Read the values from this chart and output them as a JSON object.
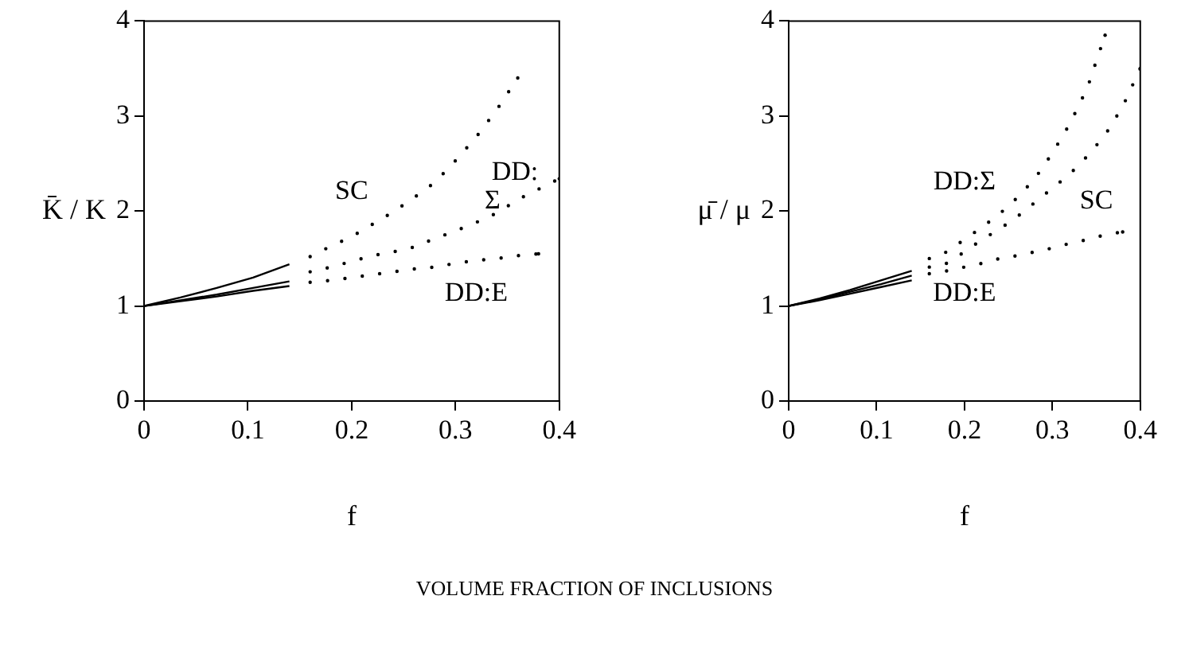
{
  "chart_data": [
    {
      "type": "line",
      "ylabel": "K̄ / K",
      "xlabel": "f",
      "xlim": [
        0,
        0.4
      ],
      "ylim": [
        0,
        4
      ],
      "xticks": [
        0,
        0.1,
        0.2,
        0.3,
        0.4
      ],
      "yticks": [
        0,
        1,
        2,
        3,
        4
      ],
      "grid": false,
      "legend": false,
      "marker": "none",
      "series": [
        {
          "color": "#000000",
          "line_style": "solid",
          "x": [
            0,
            0.035,
            0.07,
            0.105,
            0.14
          ],
          "values": [
            1,
            1.09,
            1.19,
            1.3,
            1.44
          ]
        },
        {
          "color": "#000000",
          "line_style": "solid",
          "x": [
            0,
            0.035,
            0.07,
            0.105,
            0.14
          ],
          "values": [
            1,
            1.06,
            1.12,
            1.19,
            1.26
          ]
        },
        {
          "color": "#000000",
          "line_style": "solid",
          "x": [
            0,
            0.035,
            0.07,
            0.105,
            0.14
          ],
          "values": [
            1,
            1.05,
            1.1,
            1.16,
            1.21
          ]
        },
        {
          "name": "SC",
          "color": "#000000",
          "line_style": "dotted",
          "x": [
            0.16,
            0.18,
            0.2,
            0.22,
            0.24,
            0.26,
            0.28,
            0.3,
            0.32,
            0.34,
            0.36
          ],
          "values": [
            1.52,
            1.63,
            1.73,
            1.86,
            1.99,
            2.14,
            2.3,
            2.53,
            2.78,
            3.07,
            3.4
          ]
        },
        {
          "name": "DD:Σ",
          "color": "#000000",
          "line_style": "dotted",
          "x": [
            0.16,
            0.18,
            0.2,
            0.22,
            0.24,
            0.26,
            0.28,
            0.3,
            0.32,
            0.34,
            0.36,
            0.38,
            0.4
          ],
          "values": [
            1.36,
            1.41,
            1.47,
            1.53,
            1.57,
            1.62,
            1.71,
            1.79,
            1.88,
            1.98,
            2.12,
            2.23,
            2.34
          ]
        },
        {
          "name": "DD:E",
          "color": "#000000",
          "line_style": "dotted",
          "x": [
            0.16,
            0.18,
            0.2,
            0.22,
            0.24,
            0.26,
            0.28,
            0.3,
            0.32,
            0.34,
            0.36,
            0.38
          ],
          "values": [
            1.25,
            1.27,
            1.3,
            1.33,
            1.36,
            1.39,
            1.41,
            1.45,
            1.48,
            1.5,
            1.53,
            1.55
          ]
        }
      ],
      "annotations": [
        "VOLUME FRACTION OF INCLUSIONS"
      ]
    },
    {
      "type": "line",
      "ylabel": "μ̄ / μ",
      "xlabel": "f",
      "xlim": [
        0,
        0.4
      ],
      "ylim": [
        0,
        4
      ],
      "xticks": [
        0,
        0.1,
        0.2,
        0.3,
        0.4
      ],
      "yticks": [
        0,
        1,
        2,
        3,
        4
      ],
      "grid": false,
      "legend": false,
      "marker": "none",
      "series": [
        {
          "color": "#000000",
          "line_style": "solid",
          "x": [
            0,
            0.035,
            0.07,
            0.105,
            0.14
          ],
          "values": [
            1,
            1.08,
            1.17,
            1.27,
            1.37
          ]
        },
        {
          "color": "#000000",
          "line_style": "solid",
          "x": [
            0,
            0.035,
            0.07,
            0.105,
            0.14
          ],
          "values": [
            1,
            1.07,
            1.15,
            1.23,
            1.32
          ]
        },
        {
          "color": "#000000",
          "line_style": "solid",
          "x": [
            0,
            0.035,
            0.07,
            0.105,
            0.14
          ],
          "values": [
            1,
            1.06,
            1.13,
            1.2,
            1.27
          ]
        },
        {
          "name": "DD:Σ",
          "color": "#000000",
          "line_style": "dotted",
          "x": [
            0.16,
            0.18,
            0.2,
            0.22,
            0.24,
            0.26,
            0.28,
            0.3,
            0.32,
            0.34,
            0.35,
            0.36
          ],
          "values": [
            1.5,
            1.57,
            1.7,
            1.83,
            1.97,
            2.14,
            2.34,
            2.61,
            2.92,
            3.3,
            3.58,
            3.85
          ]
        },
        {
          "name": "SC",
          "color": "#000000",
          "line_style": "dotted",
          "x": [
            0.16,
            0.18,
            0.2,
            0.22,
            0.24,
            0.26,
            0.28,
            0.3,
            0.32,
            0.34,
            0.36,
            0.38,
            0.4
          ],
          "values": [
            1.41,
            1.45,
            1.57,
            1.7,
            1.81,
            1.94,
            2.09,
            2.24,
            2.39,
            2.58,
            2.8,
            3.1,
            3.5
          ]
        },
        {
          "name": "DD:E",
          "color": "#000000",
          "line_style": "dotted",
          "x": [
            0.16,
            0.18,
            0.2,
            0.22,
            0.24,
            0.26,
            0.28,
            0.3,
            0.32,
            0.34,
            0.36,
            0.38
          ],
          "values": [
            1.34,
            1.37,
            1.41,
            1.45,
            1.5,
            1.53,
            1.57,
            1.61,
            1.66,
            1.7,
            1.75,
            1.78
          ]
        }
      ]
    }
  ]
}
